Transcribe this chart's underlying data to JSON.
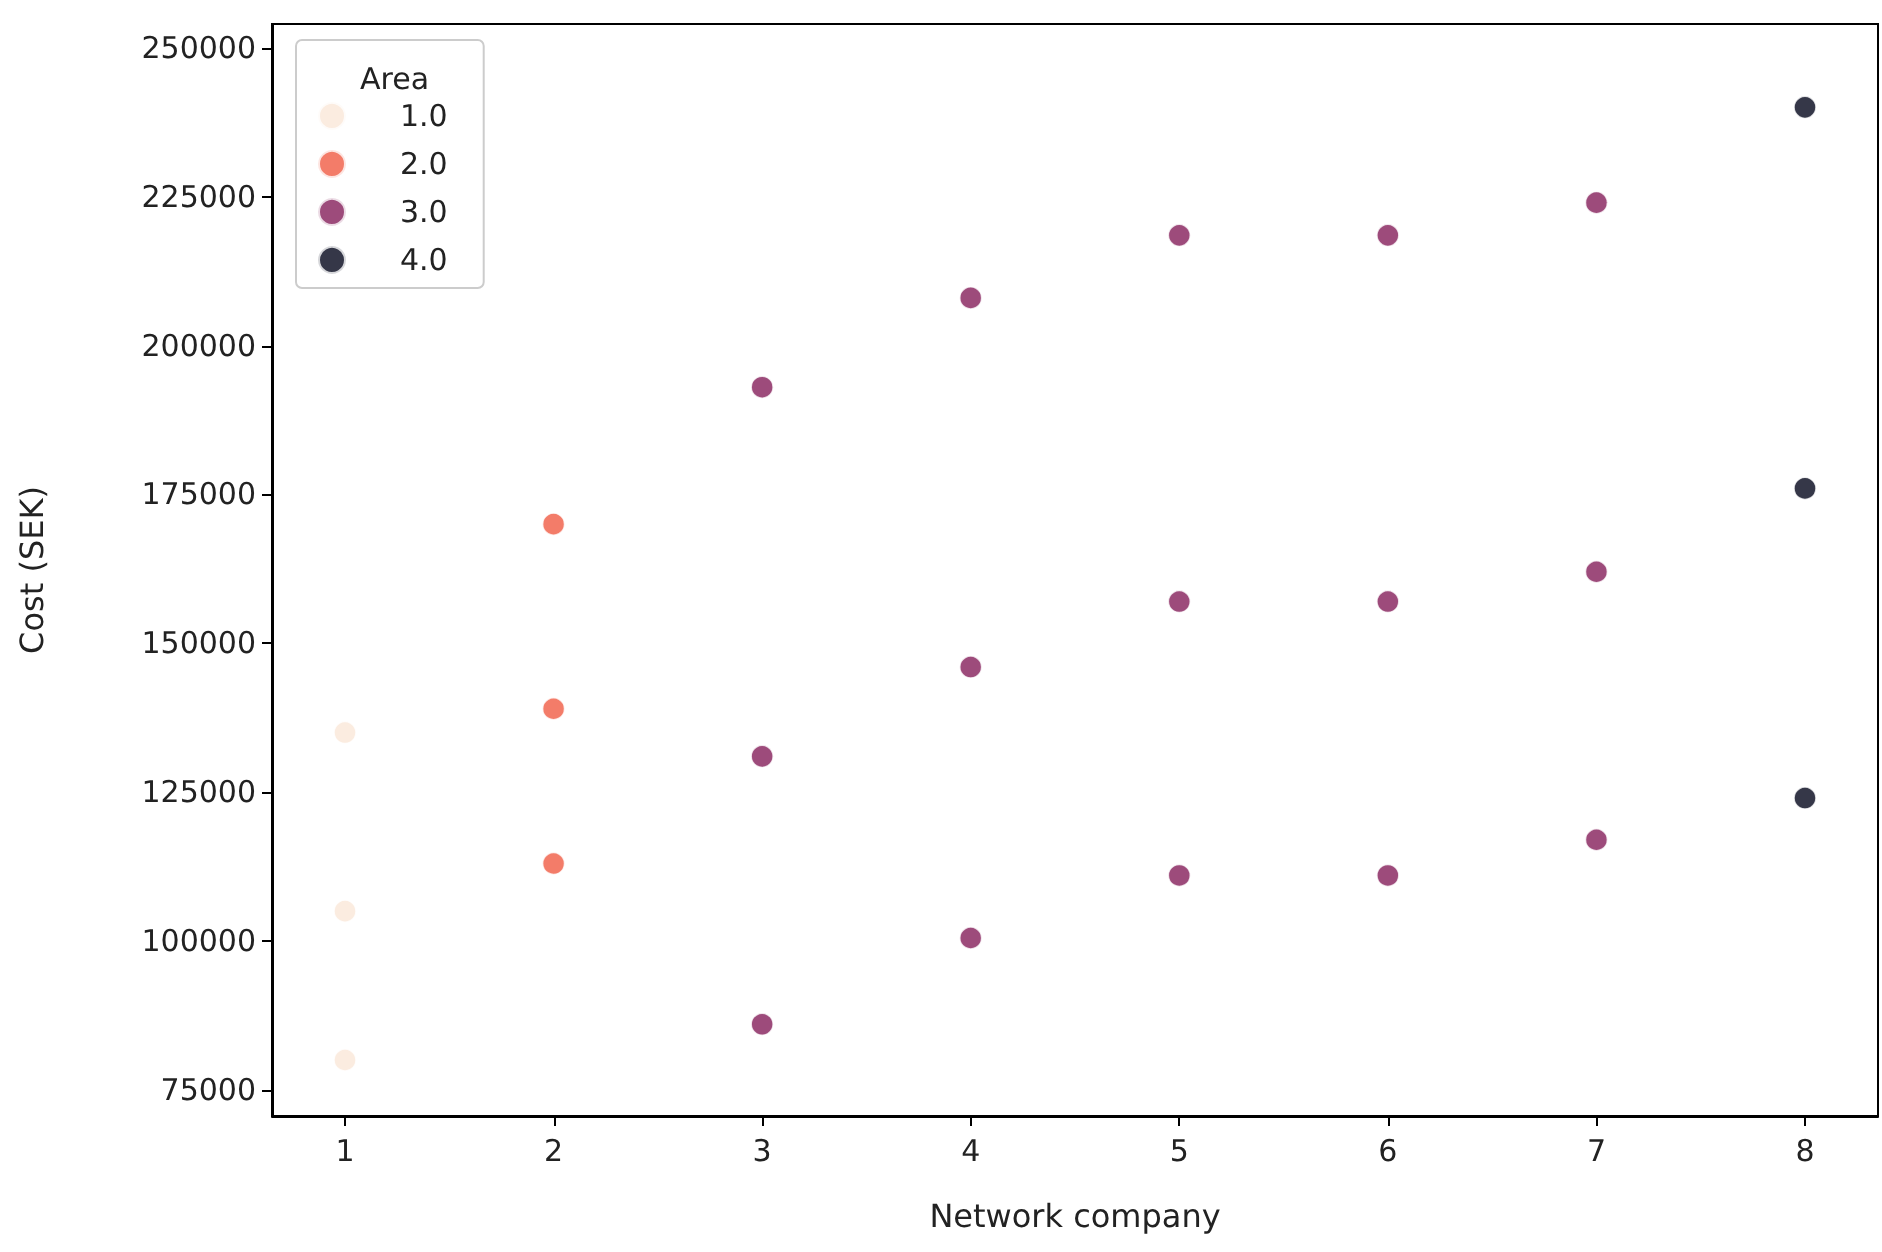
{
  "chart_data": {
    "type": "scatter",
    "xlabel": "Network company",
    "ylabel": "Cost (SEK)",
    "legend_title": "Area",
    "legend": "top left",
    "grid": false,
    "marker": "circle",
    "xlim": [
      0.65,
      8.35
    ],
    "xticks": [
      1,
      2,
      3,
      4,
      5,
      6,
      7,
      8
    ],
    "ylim": [
      70600,
      254000
    ],
    "yticks": [
      75000,
      100000,
      125000,
      150000,
      175000,
      200000,
      225000,
      250000
    ],
    "series": [
      {
        "name": "1.0",
        "color": "#fae7d8",
        "x": [
          1,
          1,
          1
        ],
        "values": [
          135000,
          105000,
          80000
        ]
      },
      {
        "name": "2.0",
        "color": "#f05b43",
        "x": [
          2,
          2,
          2
        ],
        "values": [
          170000,
          139000,
          113000
        ]
      },
      {
        "name": "3.0",
        "color": "#841e5a",
        "x": [
          3,
          3,
          3,
          4,
          4,
          4,
          5,
          5,
          5,
          6,
          6,
          6,
          7,
          7,
          7
        ],
        "values": [
          193000,
          131000,
          86000,
          208000,
          146000,
          100500,
          218500,
          157000,
          111000,
          218500,
          157000,
          111000,
          224000,
          162000,
          117000
        ]
      },
      {
        "name": "4.0",
        "color": "#03051a",
        "x": [
          8,
          8,
          8
        ],
        "values": [
          240000,
          176000,
          124000
        ]
      }
    ]
  }
}
